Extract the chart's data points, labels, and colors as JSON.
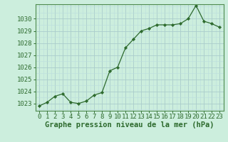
{
  "x": [
    0,
    1,
    2,
    3,
    4,
    5,
    6,
    7,
    8,
    9,
    10,
    11,
    12,
    13,
    14,
    15,
    16,
    17,
    18,
    19,
    20,
    21,
    22,
    23
  ],
  "y": [
    1022.8,
    1023.1,
    1023.6,
    1023.8,
    1023.1,
    1023.0,
    1023.2,
    1023.7,
    1023.9,
    1025.7,
    1026.0,
    1027.6,
    1028.3,
    1029.0,
    1029.2,
    1029.5,
    1029.5,
    1029.5,
    1029.6,
    1030.0,
    1031.1,
    1029.8,
    1029.6,
    1029.3
  ],
  "line_color": "#2d6a2d",
  "marker_color": "#2d6a2d",
  "bg_color": "#cceedd",
  "grid_major_color": "#aacccc",
  "grid_minor_color": "#bbdddd",
  "ylabel_ticks": [
    1023,
    1024,
    1025,
    1026,
    1027,
    1028,
    1029,
    1030
  ],
  "ylim": [
    1022.4,
    1031.2
  ],
  "xlim": [
    -0.5,
    23.5
  ],
  "xlabel": "Graphe pression niveau de la mer (hPa)",
  "xlabel_fontsize": 7.5,
  "tick_fontsize": 6.5,
  "spine_color": "#4d8a4d",
  "tick_color": "#2d6a2d"
}
